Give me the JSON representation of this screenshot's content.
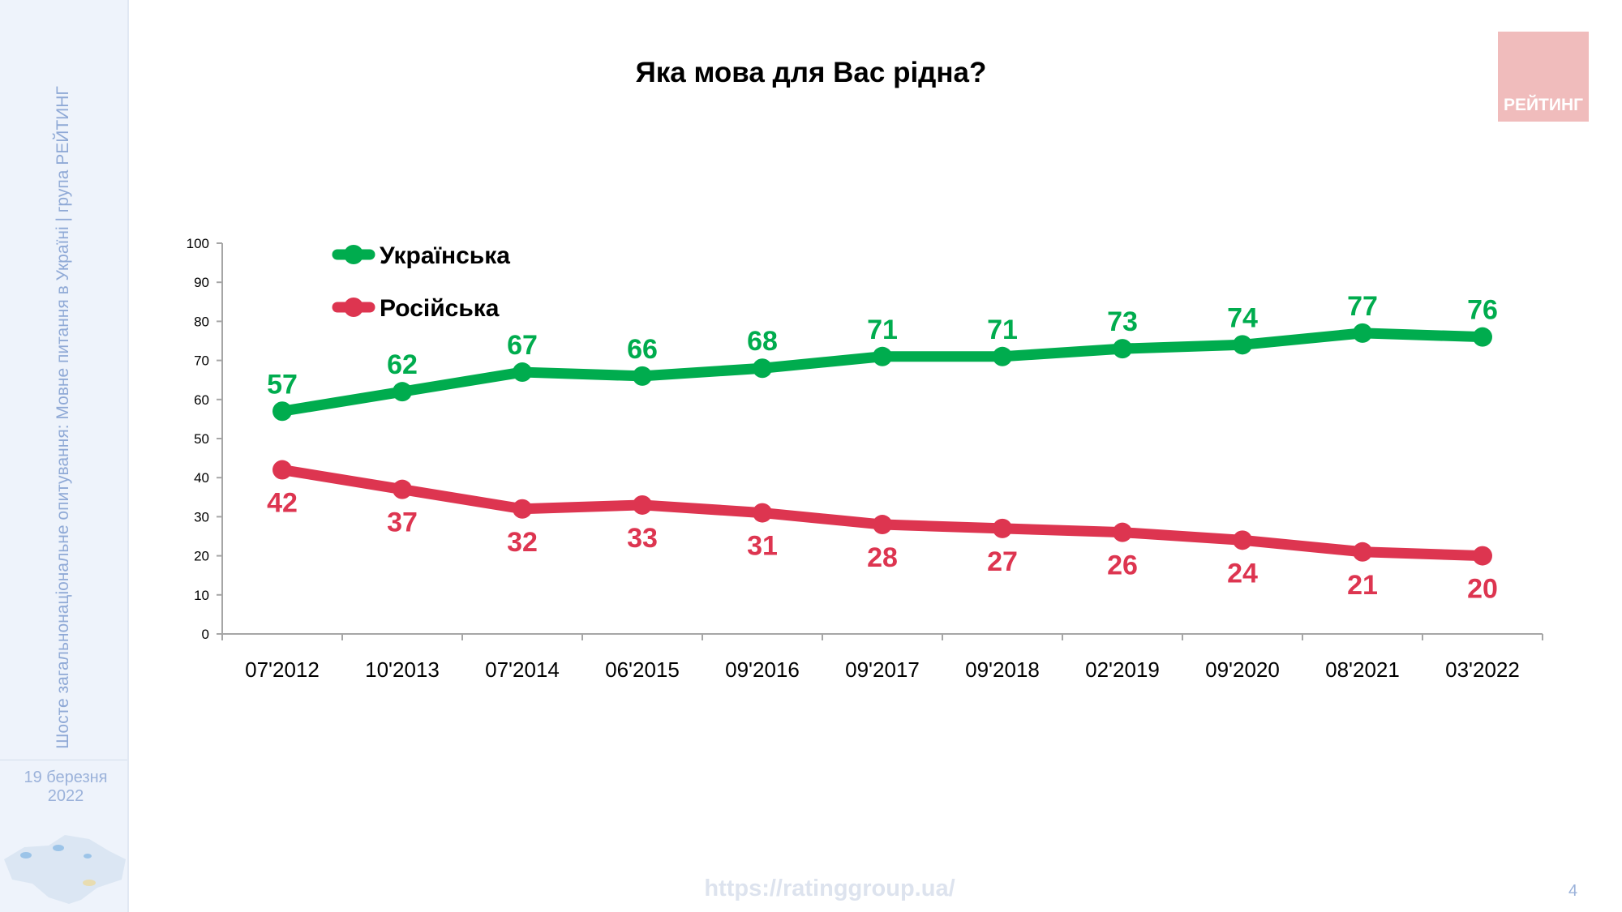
{
  "sidebar": {
    "vertical_text": "Шосте загальнонаціональне опитування: Мовне питання в Україні | група РЕЙТИНГ",
    "date_line1": "19 березня",
    "date_line2": "2022"
  },
  "logo_text": "РЕЙТИНГ",
  "footer": {
    "url": "https://ratinggroup.ua/",
    "page_number": "4"
  },
  "chart_data": {
    "type": "line",
    "title": "Яка мова для Вас рідна?",
    "categories": [
      "07'2012",
      "10'2013",
      "07'2014",
      "06'2015",
      "09'2016",
      "09'2017",
      "09'2018",
      "02'2019",
      "09'2020",
      "08'2021",
      "03'2022"
    ],
    "series": [
      {
        "name": "Українська",
        "color": "#00ac4e",
        "values": [
          57,
          62,
          67,
          66,
          68,
          71,
          71,
          73,
          74,
          77,
          76
        ]
      },
      {
        "name": "Російська",
        "color": "#dd3550",
        "values": [
          42,
          37,
          32,
          33,
          31,
          28,
          27,
          26,
          24,
          21,
          20
        ]
      }
    ],
    "ylim": [
      0,
      100
    ],
    "yticks": [
      0,
      10,
      20,
      30,
      40,
      50,
      60,
      70,
      80,
      90,
      100
    ],
    "legend": "top-left",
    "grid": false,
    "data_labels": true
  }
}
